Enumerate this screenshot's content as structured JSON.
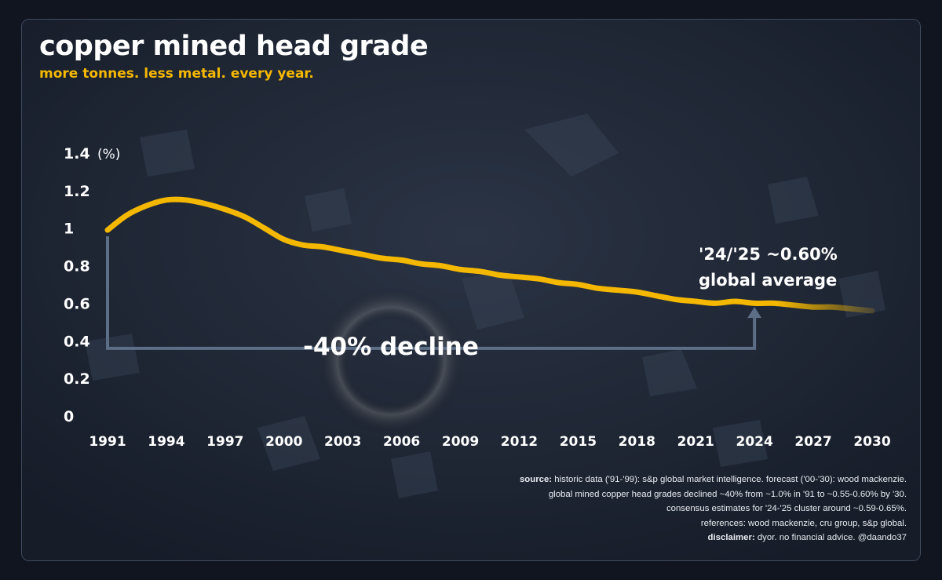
{
  "header": {
    "title": "copper mined head grade",
    "subtitle": "more tonnes. less metal. every year."
  },
  "chart_data": {
    "type": "line",
    "y_unit": "(%)",
    "ylim": [
      0,
      1.4
    ],
    "y_ticks": [
      {
        "value": 0,
        "label": "0"
      },
      {
        "value": 0.2,
        "label": "0.2"
      },
      {
        "value": 0.4,
        "label": "0.4"
      },
      {
        "value": 0.6,
        "label": "0.6"
      },
      {
        "value": 0.8,
        "label": "0.8"
      },
      {
        "value": 1.0,
        "label": "1"
      },
      {
        "value": 1.2,
        "label": "1.2"
      },
      {
        "value": 1.4,
        "label": "1.4"
      }
    ],
    "xlim": [
      1991,
      2030
    ],
    "x_ticks": [
      "1991",
      "1994",
      "1997",
      "2000",
      "2003",
      "2006",
      "2009",
      "2012",
      "2015",
      "2018",
      "2021",
      "2024",
      "2027",
      "2030"
    ],
    "grid": false,
    "line_color": "#f5b800",
    "series": [
      {
        "x": [
          1991,
          1992,
          1993,
          1994,
          1995,
          1996,
          1997,
          1998,
          1999,
          2000,
          2001,
          2002,
          2003,
          2004,
          2005,
          2006,
          2007,
          2008,
          2009,
          2010,
          2011,
          2012,
          2013,
          2014,
          2015,
          2016,
          2017,
          2018,
          2019,
          2020,
          2021,
          2022,
          2023,
          2024,
          2025,
          2026,
          2027,
          2028,
          2029,
          2030
        ],
        "y": [
          0.99,
          1.07,
          1.12,
          1.15,
          1.15,
          1.13,
          1.1,
          1.06,
          1.0,
          0.94,
          0.91,
          0.9,
          0.88,
          0.86,
          0.84,
          0.83,
          0.81,
          0.8,
          0.78,
          0.77,
          0.75,
          0.74,
          0.73,
          0.71,
          0.7,
          0.68,
          0.67,
          0.66,
          0.64,
          0.62,
          0.61,
          0.6,
          0.61,
          0.6,
          0.6,
          0.59,
          0.58,
          0.58,
          0.57,
          0.56
        ]
      }
    ],
    "annotations": [
      {
        "text": "-40% decline"
      },
      {
        "line1": "'24/'25 ~0.60%",
        "line2": "global average"
      }
    ]
  },
  "footer": {
    "source_label": "source:",
    "source_text": " historic data ('91-'99): s&p global market intelligence. forecast ('00-'30): wood mackenzie.",
    "line2": "global mined copper head grades declined ~40% from ~1.0% in '91 to ~0.55-0.60% by '30.",
    "line3": "consensus estimates for '24-'25 cluster around ~0.59-0.65%.",
    "line4": "references: wood mackenzie, cru group, s&p global.",
    "disclaimer_label": "disclaimer:",
    "disclaimer_text": " dyor. no financial advice. @daando37"
  }
}
